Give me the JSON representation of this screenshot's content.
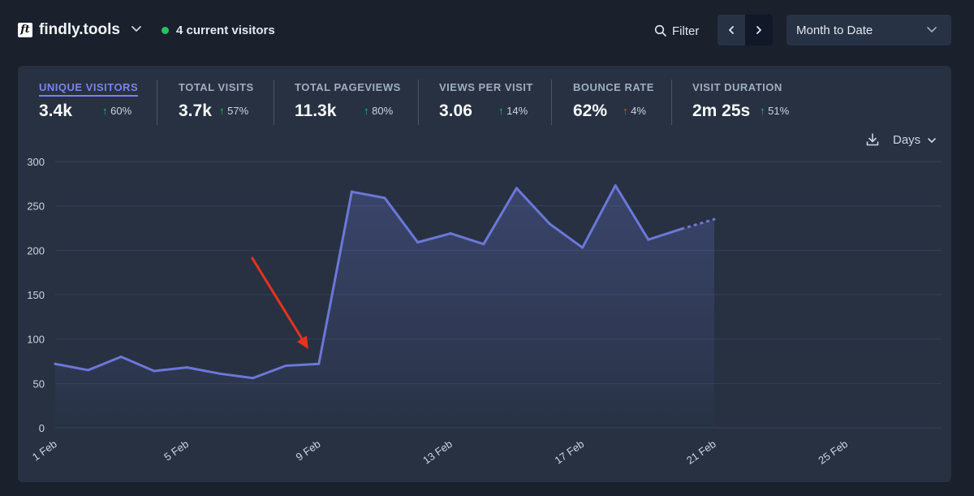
{
  "header": {
    "logo_text": "ft",
    "site_name": "findly.tools",
    "current_visitors": "4 current visitors",
    "filter_label": "Filter",
    "period_label": "Month to Date"
  },
  "stats": [
    {
      "label": "UNIQUE VISITORS",
      "value": "3.4k",
      "change": "60%",
      "direction": "up"
    },
    {
      "label": "TOTAL VISITS",
      "value": "3.7k",
      "change": "57%",
      "direction": "up"
    },
    {
      "label": "TOTAL PAGEVIEWS",
      "value": "11.3k",
      "change": "80%",
      "direction": "up"
    },
    {
      "label": "VIEWS PER VISIT",
      "value": "3.06",
      "change": "14%",
      "direction": "up"
    },
    {
      "label": "BOUNCE RATE",
      "value": "62%",
      "change": "4%",
      "direction": "up-red"
    },
    {
      "label": "VISIT DURATION",
      "value": "2m 25s",
      "change": "51%",
      "direction": "up"
    }
  ],
  "controls": {
    "interval_label": "Days"
  },
  "icons": {
    "arrow_up": "↑",
    "download": "download-icon",
    "search": "search-icon",
    "chevron": "chevron-down-icon"
  },
  "colors": {
    "background": "#1a202c",
    "card": "#273142",
    "accent": "#6c77d8",
    "live": "#22c55e",
    "annotation": "#e8321c"
  },
  "chart_data": {
    "type": "line",
    "title": "Unique visitors",
    "xlabel": "",
    "ylabel": "",
    "ylim": [
      0,
      300
    ],
    "yticks": [
      "0",
      "50",
      "100",
      "150",
      "200",
      "250",
      "300"
    ],
    "xticks": [
      "1 Feb",
      "5 Feb",
      "9 Feb",
      "13 Feb",
      "17 Feb",
      "21 Feb",
      "25 Feb"
    ],
    "days_in_range": 28,
    "series": [
      {
        "name": "Unique visitors",
        "days": [
          1,
          2,
          3,
          4,
          5,
          6,
          7,
          8,
          9,
          10,
          11,
          12,
          13,
          14,
          15,
          16,
          17,
          18,
          19,
          20,
          21
        ],
        "values": [
          72,
          65,
          80,
          64,
          68,
          61,
          56,
          70,
          72,
          266,
          259,
          209,
          219,
          207,
          270,
          230,
          203,
          273,
          212,
          224,
          235
        ],
        "partial_from_day": 20
      }
    ],
    "annotation": {
      "type": "arrow",
      "points_to_day": 9
    }
  }
}
